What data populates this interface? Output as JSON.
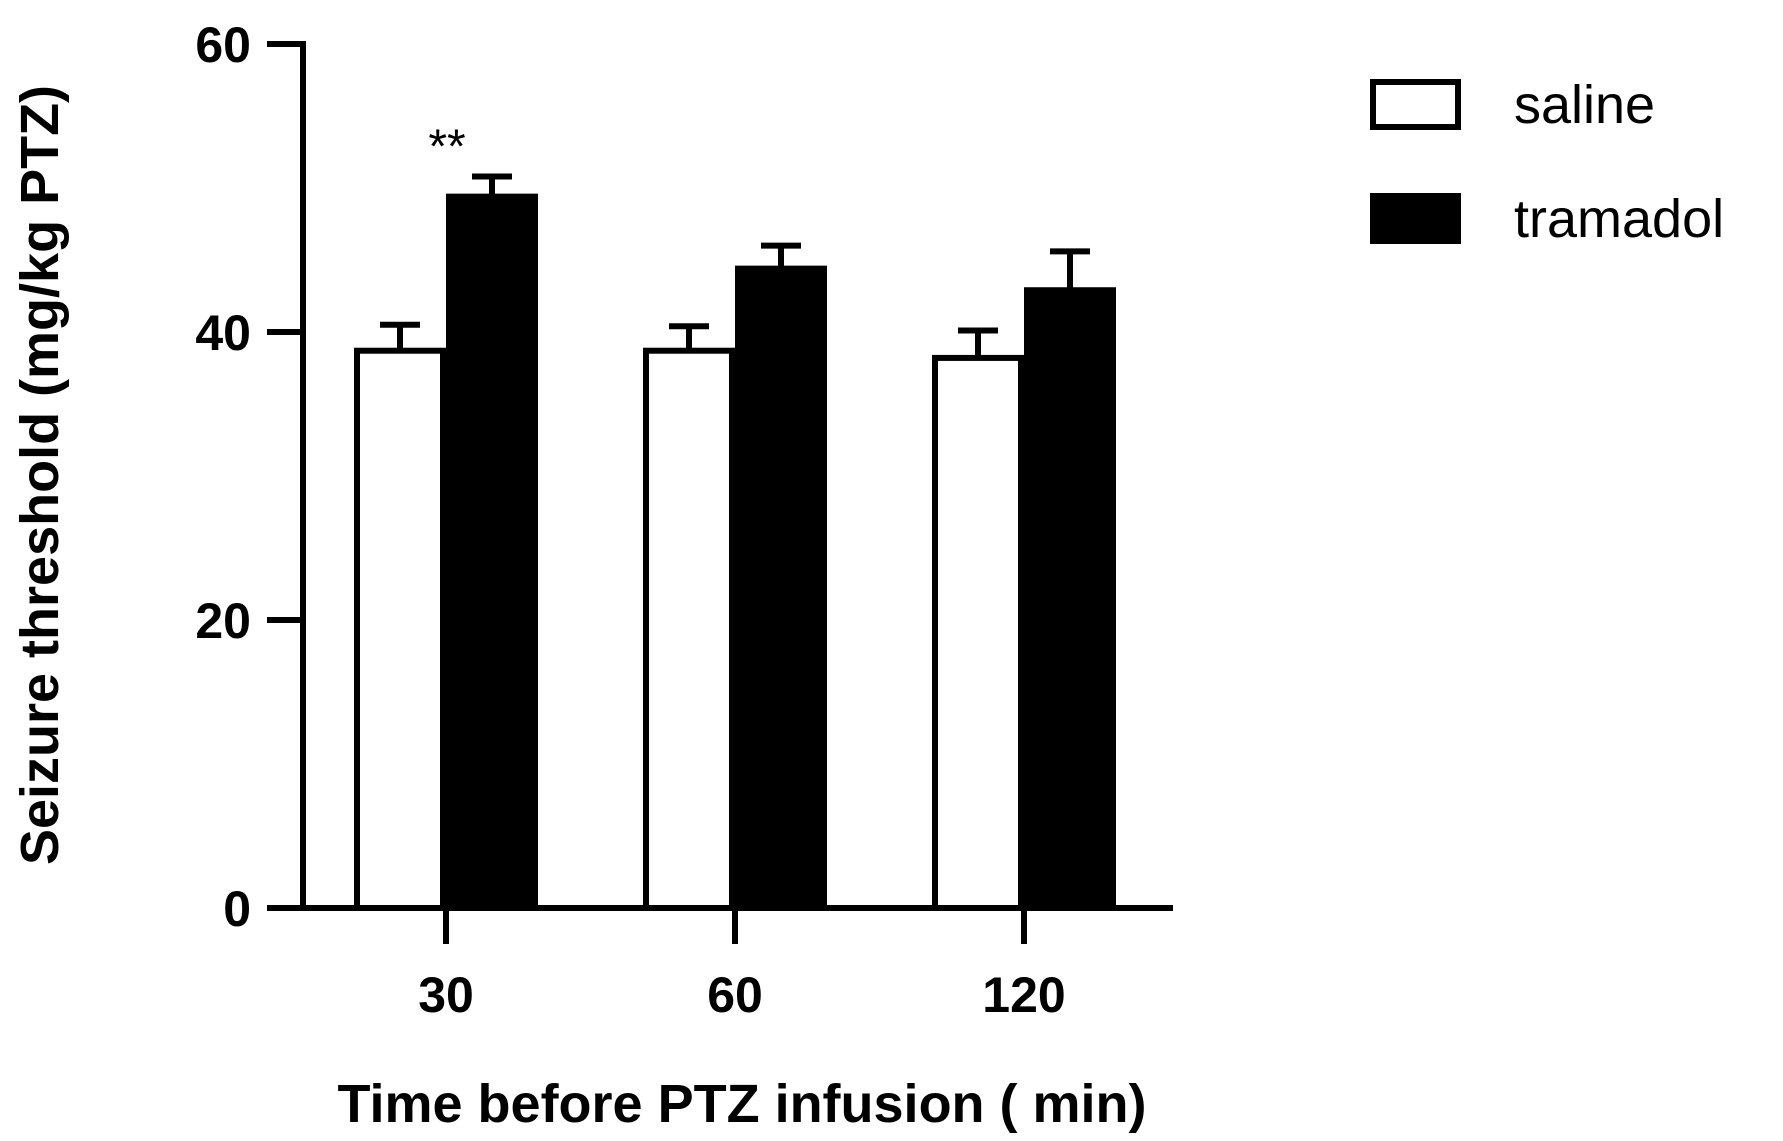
{
  "chart_data": {
    "type": "bar",
    "title": "",
    "xlabel": "Time before PTZ infusion ( min)",
    "ylabel": "Seizure threshold (mg/kg PTZ)",
    "categories": [
      "30",
      "60",
      "120"
    ],
    "ylim": [
      0,
      60
    ],
    "yticks": [
      0,
      20,
      40,
      60
    ],
    "series": [
      {
        "name": "saline",
        "values": [
          38.7,
          38.7,
          38.2
        ],
        "errors": [
          1.8,
          1.7,
          1.9
        ],
        "fill": "#ffffff",
        "stroke": "#000000"
      },
      {
        "name": "tramadol",
        "values": [
          49.4,
          44.4,
          42.9
        ],
        "errors": [
          1.4,
          1.6,
          2.7
        ],
        "fill": "#000000",
        "stroke": "#000000"
      }
    ],
    "annotations": [
      {
        "category": "30",
        "series": "tramadol",
        "text": "**"
      }
    ],
    "legend_position": "top-right",
    "grid": false
  }
}
